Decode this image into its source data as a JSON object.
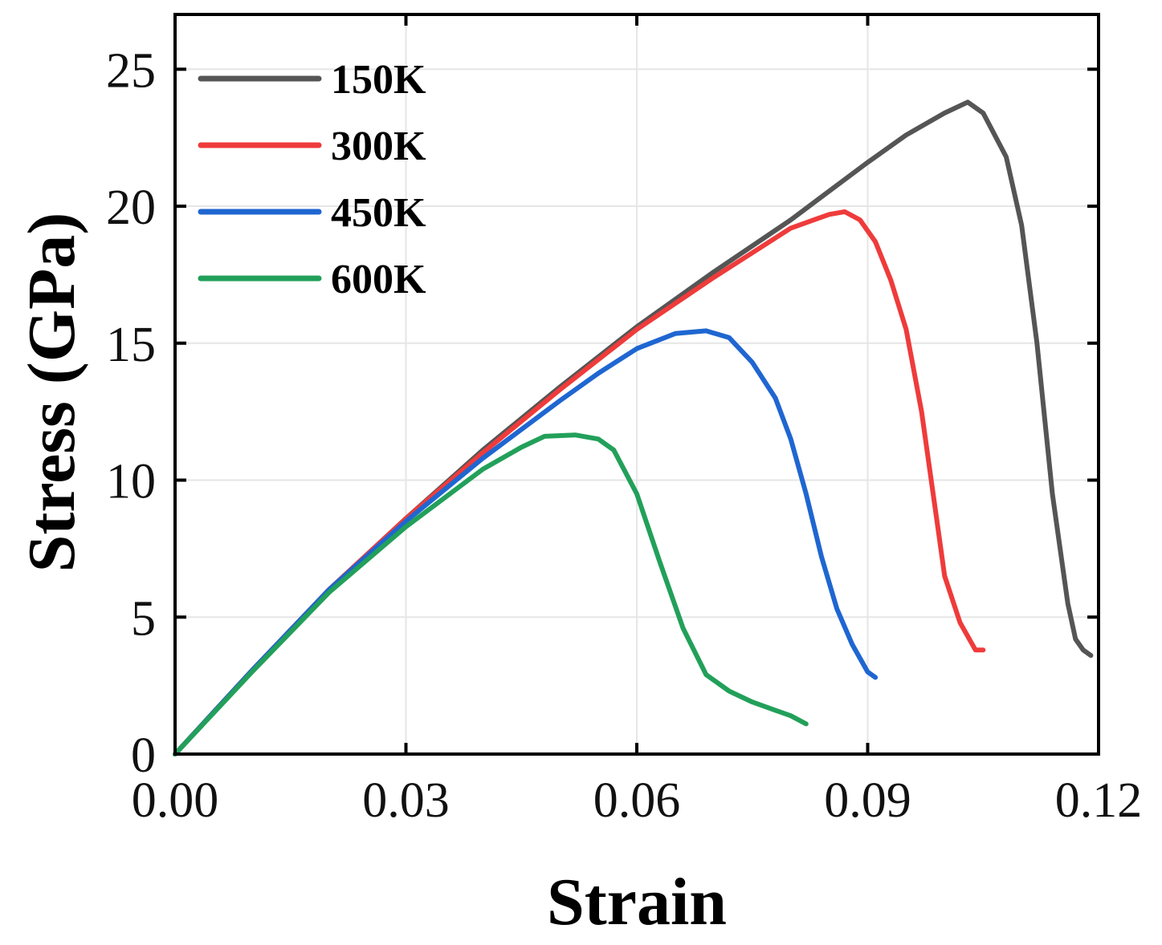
{
  "chart_data": {
    "type": "line",
    "title": "",
    "xlabel": "Strain",
    "ylabel": "Stress (GPa)",
    "xlim": [
      0,
      0.12
    ],
    "ylim": [
      0,
      27
    ],
    "xticks": [
      0.0,
      0.03,
      0.06,
      0.09,
      0.12
    ],
    "xtick_labels": [
      "0.00",
      "0.03",
      "0.06",
      "0.09",
      "0.12"
    ],
    "yticks": [
      0,
      5,
      10,
      15,
      20,
      25
    ],
    "ytick_labels": [
      "0",
      "5",
      "10",
      "15",
      "20",
      "25"
    ],
    "grid": true,
    "legend_position": "top-left",
    "series": [
      {
        "name": "150K",
        "color": "#555555",
        "x": [
          0.0,
          0.01,
          0.02,
          0.03,
          0.04,
          0.05,
          0.06,
          0.07,
          0.08,
          0.09,
          0.095,
          0.1,
          0.103,
          0.105,
          0.108,
          0.11,
          0.112,
          0.114,
          0.116,
          0.117,
          0.118,
          0.119
        ],
        "y": [
          0.0,
          3.05,
          6.0,
          8.6,
          11.1,
          13.4,
          15.6,
          17.6,
          19.5,
          21.6,
          22.6,
          23.4,
          23.8,
          23.4,
          21.8,
          19.3,
          15.0,
          9.5,
          5.5,
          4.2,
          3.8,
          3.6
        ]
      },
      {
        "name": "300K",
        "color": "#ef3b3b",
        "x": [
          0.0,
          0.01,
          0.02,
          0.03,
          0.04,
          0.05,
          0.06,
          0.07,
          0.075,
          0.08,
          0.085,
          0.087,
          0.089,
          0.091,
          0.093,
          0.095,
          0.097,
          0.099,
          0.1,
          0.102,
          0.104,
          0.105
        ],
        "y": [
          0.0,
          3.05,
          6.0,
          8.6,
          11.0,
          13.3,
          15.5,
          17.4,
          18.3,
          19.2,
          19.7,
          19.8,
          19.5,
          18.7,
          17.3,
          15.5,
          12.5,
          8.5,
          6.5,
          4.8,
          3.8,
          3.8
        ]
      },
      {
        "name": "450K",
        "color": "#1f66d1",
        "x": [
          0.0,
          0.01,
          0.02,
          0.03,
          0.04,
          0.05,
          0.055,
          0.06,
          0.065,
          0.069,
          0.072,
          0.075,
          0.078,
          0.08,
          0.082,
          0.084,
          0.086,
          0.088,
          0.09,
          0.091
        ],
        "y": [
          0.0,
          3.05,
          6.0,
          8.5,
          10.8,
          12.9,
          13.9,
          14.8,
          15.35,
          15.45,
          15.2,
          14.3,
          13.0,
          11.5,
          9.5,
          7.2,
          5.3,
          4.0,
          3.0,
          2.8
        ]
      },
      {
        "name": "600K",
        "color": "#22a05a",
        "x": [
          0.0,
          0.01,
          0.02,
          0.03,
          0.04,
          0.045,
          0.048,
          0.052,
          0.055,
          0.057,
          0.06,
          0.063,
          0.066,
          0.069,
          0.072,
          0.075,
          0.078,
          0.08,
          0.082
        ],
        "y": [
          0.0,
          3.0,
          5.9,
          8.3,
          10.4,
          11.2,
          11.6,
          11.65,
          11.5,
          11.1,
          9.5,
          7.0,
          4.6,
          2.9,
          2.3,
          1.9,
          1.6,
          1.4,
          1.1
        ]
      }
    ]
  }
}
